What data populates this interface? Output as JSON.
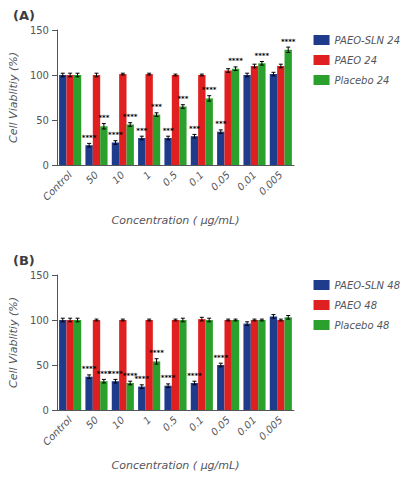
{
  "chart_data": [
    {
      "type": "bar",
      "title": "(A)",
      "categories": [
        "Control",
        "50",
        "10",
        "1",
        "0.5",
        "0.1",
        "0.05",
        "0.01",
        "0.005"
      ],
      "xlabel": "Concentration ( μg/mL)",
      "ylabel": "Cell Viablitiy (%)",
      "ylim": [
        0,
        150
      ],
      "yticks": [
        0,
        50,
        100,
        150
      ],
      "grid": false,
      "legend": "right",
      "series": [
        {
          "name": "PAEO-SLN 24",
          "color": "#1f3b8c",
          "values": [
            100,
            22,
            25,
            30,
            30,
            32,
            37,
            100,
            101
          ],
          "errors": [
            2,
            2,
            2,
            2,
            2,
            2,
            2,
            2,
            2
          ],
          "annotations": [
            null,
            "****",
            "****",
            "***",
            "***",
            "***",
            "***",
            null,
            null
          ]
        },
        {
          "name": "PAEO 24",
          "color": "#e02020",
          "values": [
            100,
            100,
            101,
            101,
            100,
            100,
            105,
            110,
            110
          ],
          "errors": [
            2,
            2,
            1,
            1,
            1,
            1,
            2,
            2,
            2
          ]
        },
        {
          "name": "Placebo 24",
          "color": "#2ca02c",
          "values": [
            100,
            43,
            45,
            56,
            65,
            74,
            107,
            113,
            128
          ],
          "errors": [
            2,
            3,
            2,
            2,
            2,
            3,
            2,
            2,
            3
          ],
          "annotations": [
            null,
            "***",
            "****",
            "***",
            "***",
            "****",
            "****",
            "****",
            "****"
          ]
        }
      ]
    },
    {
      "type": "bar",
      "title": "(B)",
      "categories": [
        "Control",
        "50",
        "10",
        "1",
        "0.5",
        "0.1",
        "0.05",
        "0.01",
        "0.005"
      ],
      "xlabel": "Concentration ( μg/mL)",
      "ylabel": "Cell Viablitiy (%)",
      "ylim": [
        0,
        150
      ],
      "yticks": [
        0,
        50,
        100,
        150
      ],
      "grid": false,
      "legend": "right",
      "series": [
        {
          "name": "PAEO-SLN 48",
          "color": "#1f3b8c",
          "values": [
            100,
            37,
            32,
            26,
            27,
            30,
            50,
            96,
            104
          ],
          "errors": [
            2,
            2,
            2,
            2,
            2,
            2,
            2,
            2,
            2
          ],
          "annotations": [
            null,
            "****",
            "****",
            "****",
            "****",
            "****",
            "****",
            null,
            null
          ]
        },
        {
          "name": "PAEO 48",
          "color": "#e02020",
          "values": [
            100,
            100,
            100,
            100,
            100,
            101,
            100,
            100,
            100
          ],
          "errors": [
            2,
            1,
            1,
            1,
            1,
            2,
            1,
            1,
            1
          ]
        },
        {
          "name": "Placebo 48",
          "color": "#2ca02c",
          "values": [
            100,
            32,
            30,
            54,
            100,
            100,
            100,
            100,
            103
          ],
          "errors": [
            2,
            2,
            2,
            3,
            2,
            2,
            1,
            1,
            2
          ],
          "annotations": [
            null,
            "****",
            "****",
            "****",
            null,
            null,
            null,
            null,
            null
          ]
        }
      ]
    }
  ]
}
